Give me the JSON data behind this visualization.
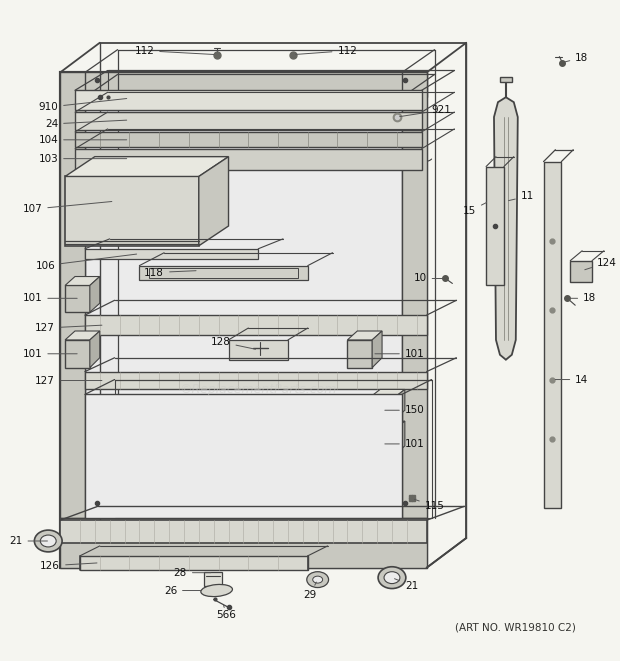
{
  "background_color": "#f5f5f0",
  "art_no_text": "(ART NO. WR19810 C2)",
  "watermark": "©ReplacementParts.com",
  "line_color": "#444444",
  "fill_light": "#d8d8d0",
  "fill_mid": "#c8c8c0",
  "fill_dark": "#b0b0a8",
  "figsize": [
    6.2,
    6.61
  ],
  "dpi": 100
}
